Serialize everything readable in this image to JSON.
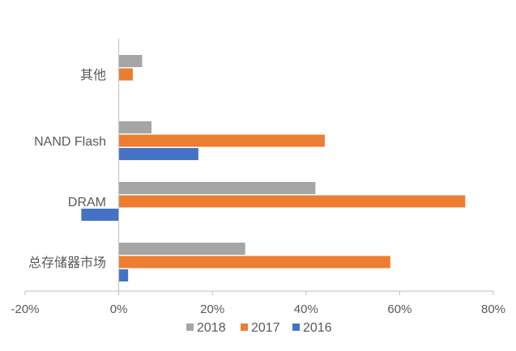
{
  "chart_data": {
    "type": "bar",
    "orientation": "horizontal",
    "title": "",
    "xlabel": "",
    "ylabel": "",
    "categories": [
      "其他",
      "NAND Flash",
      "DRAM",
      "总存储器市场"
    ],
    "series": [
      {
        "name": "2018",
        "color": "#A5A5A5",
        "values": [
          5,
          7,
          42,
          27
        ]
      },
      {
        "name": "2017",
        "color": "#ED7D31",
        "values": [
          3,
          44,
          74,
          58
        ]
      },
      {
        "name": "2016",
        "color": "#4472C4",
        "values": [
          null,
          17,
          -8,
          2
        ]
      }
    ],
    "xlim": [
      -20,
      80
    ],
    "xticks": [
      "-20%",
      "0%",
      "20%",
      "40%",
      "60%",
      "80%"
    ],
    "tick_values": [
      -20,
      0,
      20,
      40,
      60,
      80
    ],
    "grid": false,
    "legend": "bottom"
  }
}
